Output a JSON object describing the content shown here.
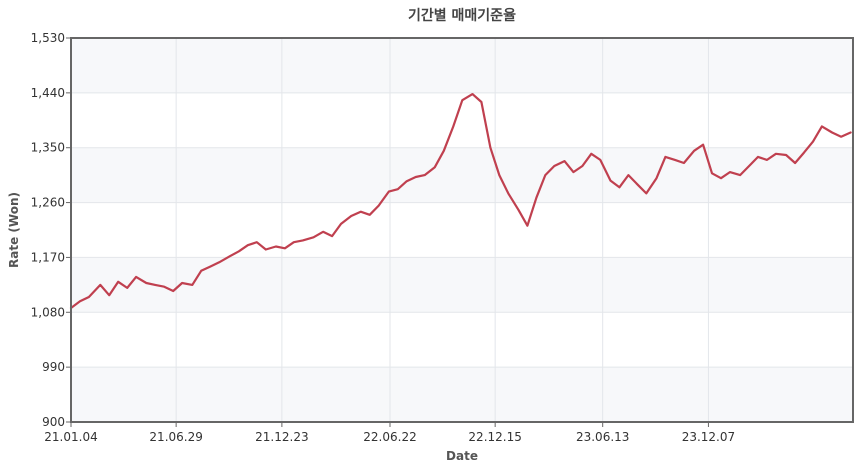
{
  "chart_data": {
    "type": "line",
    "title": "기간별 매매기준율",
    "xlabel": "Date",
    "ylabel": "Rate (Won)",
    "ylim": [
      900,
      1530
    ],
    "yticks": [
      900,
      990,
      1080,
      1170,
      1260,
      1350,
      1440,
      1530
    ],
    "ytick_labels": [
      "900",
      "990",
      "1,080",
      "1,170",
      "1,260",
      "1,350",
      "1,440",
      "1,530"
    ],
    "x_range": [
      "2021-01-04",
      "2024-08-05"
    ],
    "xticks": [
      {
        "date": "2021-01-04",
        "label": "21.01.04"
      },
      {
        "date": "2021-06-29",
        "label": "21.06.29"
      },
      {
        "date": "2021-12-23",
        "label": "21.12.23"
      },
      {
        "date": "2022-06-22",
        "label": "22.06.22"
      },
      {
        "date": "2022-12-15",
        "label": "22.12.15"
      },
      {
        "date": "2023-06-13",
        "label": "23.06.13"
      },
      {
        "date": "2023-12-07",
        "label": "23.12.07"
      }
    ],
    "grid": true,
    "line_color": "#c0404f",
    "series": [
      {
        "x": [
          "2021-01-04",
          "2021-01-19",
          "2021-02-03",
          "2021-02-22",
          "2021-03-09",
          "2021-03-24",
          "2021-04-08",
          "2021-04-23",
          "2021-05-10",
          "2021-05-25",
          "2021-06-09",
          "2021-06-24",
          "2021-07-09",
          "2021-07-26",
          "2021-08-10",
          "2021-08-25",
          "2021-09-09",
          "2021-09-27",
          "2021-10-12",
          "2021-10-27",
          "2021-11-11",
          "2021-11-26",
          "2021-12-13",
          "2021-12-28",
          "2022-01-12",
          "2022-01-27",
          "2022-02-14",
          "2022-03-02",
          "2022-03-17",
          "2022-04-01",
          "2022-04-18",
          "2022-05-04",
          "2022-05-19",
          "2022-06-03",
          "2022-06-20",
          "2022-07-05",
          "2022-07-20",
          "2022-08-04",
          "2022-08-19",
          "2022-09-05",
          "2022-09-20",
          "2022-10-06",
          "2022-10-21",
          "2022-11-07",
          "2022-11-22",
          "2022-12-07",
          "2022-12-22",
          "2023-01-06",
          "2023-01-23",
          "2023-02-07",
          "2023-02-22",
          "2023-03-09",
          "2023-03-24",
          "2023-04-10",
          "2023-04-25",
          "2023-05-10",
          "2023-05-25",
          "2023-06-09",
          "2023-06-26",
          "2023-07-11",
          "2023-07-26",
          "2023-08-10",
          "2023-08-25",
          "2023-09-11",
          "2023-09-26",
          "2023-10-12",
          "2023-10-27",
          "2023-11-13",
          "2023-11-28",
          "2023-12-13",
          "2023-12-28",
          "2024-01-12",
          "2024-01-29",
          "2024-02-13",
          "2024-02-28",
          "2024-03-14",
          "2024-03-29",
          "2024-04-15",
          "2024-04-30",
          "2024-05-15",
          "2024-05-30",
          "2024-06-14",
          "2024-07-01",
          "2024-07-16",
          "2024-08-01"
        ],
        "values": [
          1087,
          1098,
          1105,
          1125,
          1108,
          1130,
          1120,
          1138,
          1128,
          1125,
          1122,
          1115,
          1128,
          1125,
          1148,
          1155,
          1162,
          1172,
          1180,
          1190,
          1195,
          1183,
          1188,
          1185,
          1195,
          1198,
          1203,
          1212,
          1205,
          1225,
          1238,
          1245,
          1240,
          1255,
          1278,
          1282,
          1295,
          1302,
          1305,
          1318,
          1345,
          1385,
          1428,
          1438,
          1425,
          1350,
          1305,
          1275,
          1248,
          1222,
          1268,
          1305,
          1320,
          1328,
          1310,
          1320,
          1340,
          1330,
          1296,
          1285,
          1305,
          1290,
          1275,
          1300,
          1335,
          1330,
          1325,
          1345,
          1355,
          1308,
          1300,
          1310,
          1305,
          1320,
          1335,
          1330,
          1340,
          1338,
          1325,
          1342,
          1360,
          1385,
          1375,
          1368,
          1375
        ]
      }
    ]
  }
}
